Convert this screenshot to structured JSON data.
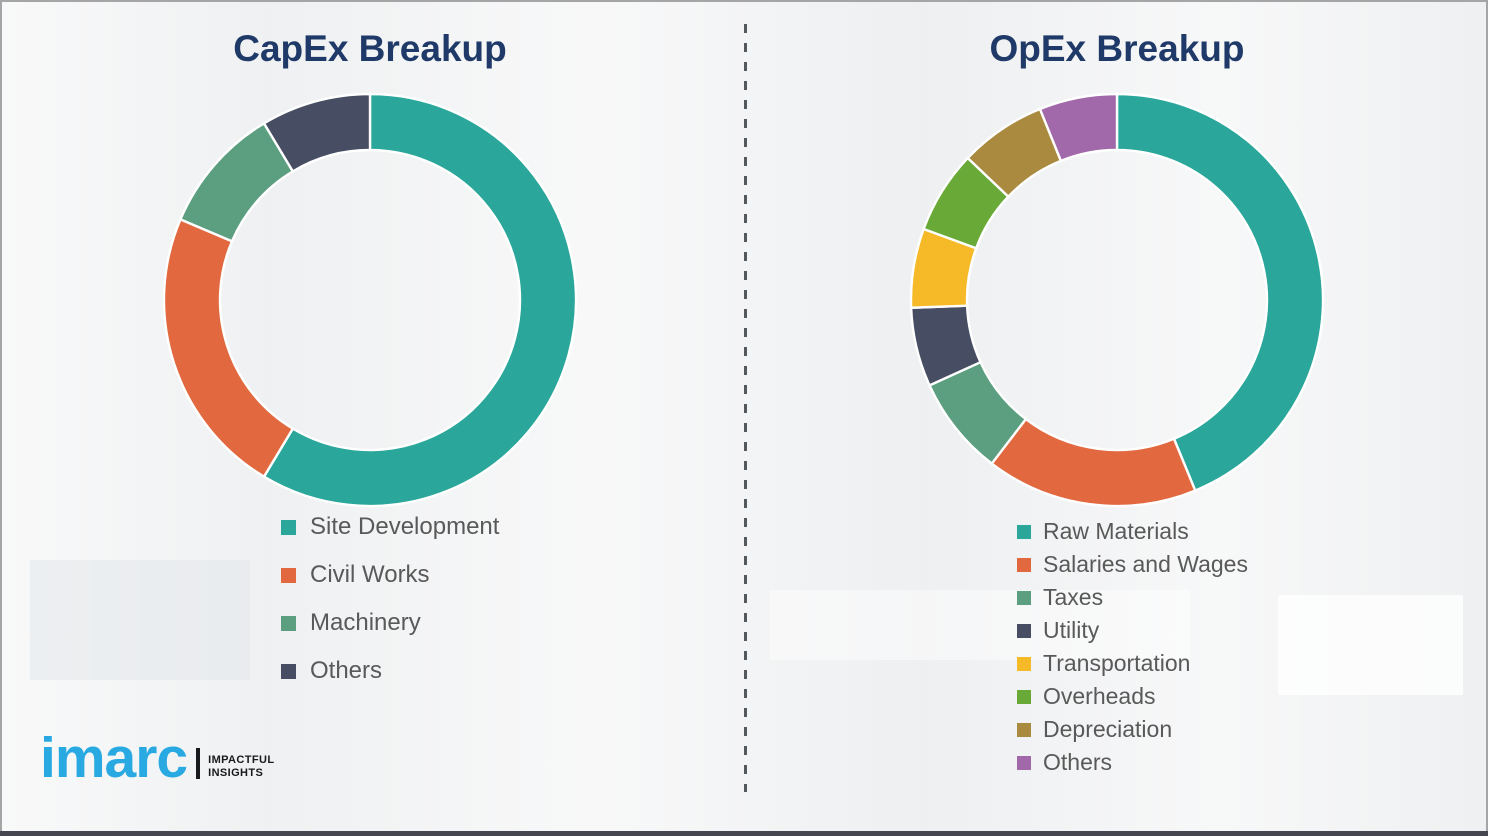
{
  "page": {
    "background_color": "#f1f2f3",
    "divider_color": "#53585c",
    "bottom_bar_color": "#45464f",
    "title_color": "#1f3a68",
    "legend_text_color": "#595959"
  },
  "branding": {
    "logo_text": "imarc",
    "logo_color": "#29a9e1",
    "tagline_line1": "IMPACTFUL",
    "tagline_line2": "INSIGHTS"
  },
  "chart_data": [
    {
      "type": "pie",
      "variant": "donut",
      "title": "CapEx Breakup",
      "categories": [
        "Site Development",
        "Civil Works",
        "Machinery",
        "Others"
      ],
      "values": [
        58.6,
        22.8,
        10.0,
        8.6
      ],
      "unit": "percent_share",
      "colors": [
        "#2aa79a",
        "#e2683f",
        "#5c9f80",
        "#474d63"
      ],
      "start_angle_deg": 0,
      "direction": "clockwise",
      "legend_position": "below-left",
      "data_labels": false
    },
    {
      "type": "pie",
      "variant": "donut",
      "title": "OpEx Breakup",
      "categories": [
        "Raw Materials",
        "Salaries and Wages",
        "Taxes",
        "Utility",
        "Transportation",
        "Overheads",
        "Depreciation",
        "Others"
      ],
      "values": [
        43.8,
        16.6,
        7.8,
        6.2,
        6.2,
        6.5,
        6.8,
        6.1
      ],
      "unit": "percent_share",
      "colors": [
        "#2aa79a",
        "#e2683f",
        "#5c9f80",
        "#474d63",
        "#f6ba29",
        "#69a938",
        "#a98a3f",
        "#a169a9"
      ],
      "start_angle_deg": 0,
      "direction": "clockwise",
      "legend_position": "below-left",
      "data_labels": false
    }
  ]
}
